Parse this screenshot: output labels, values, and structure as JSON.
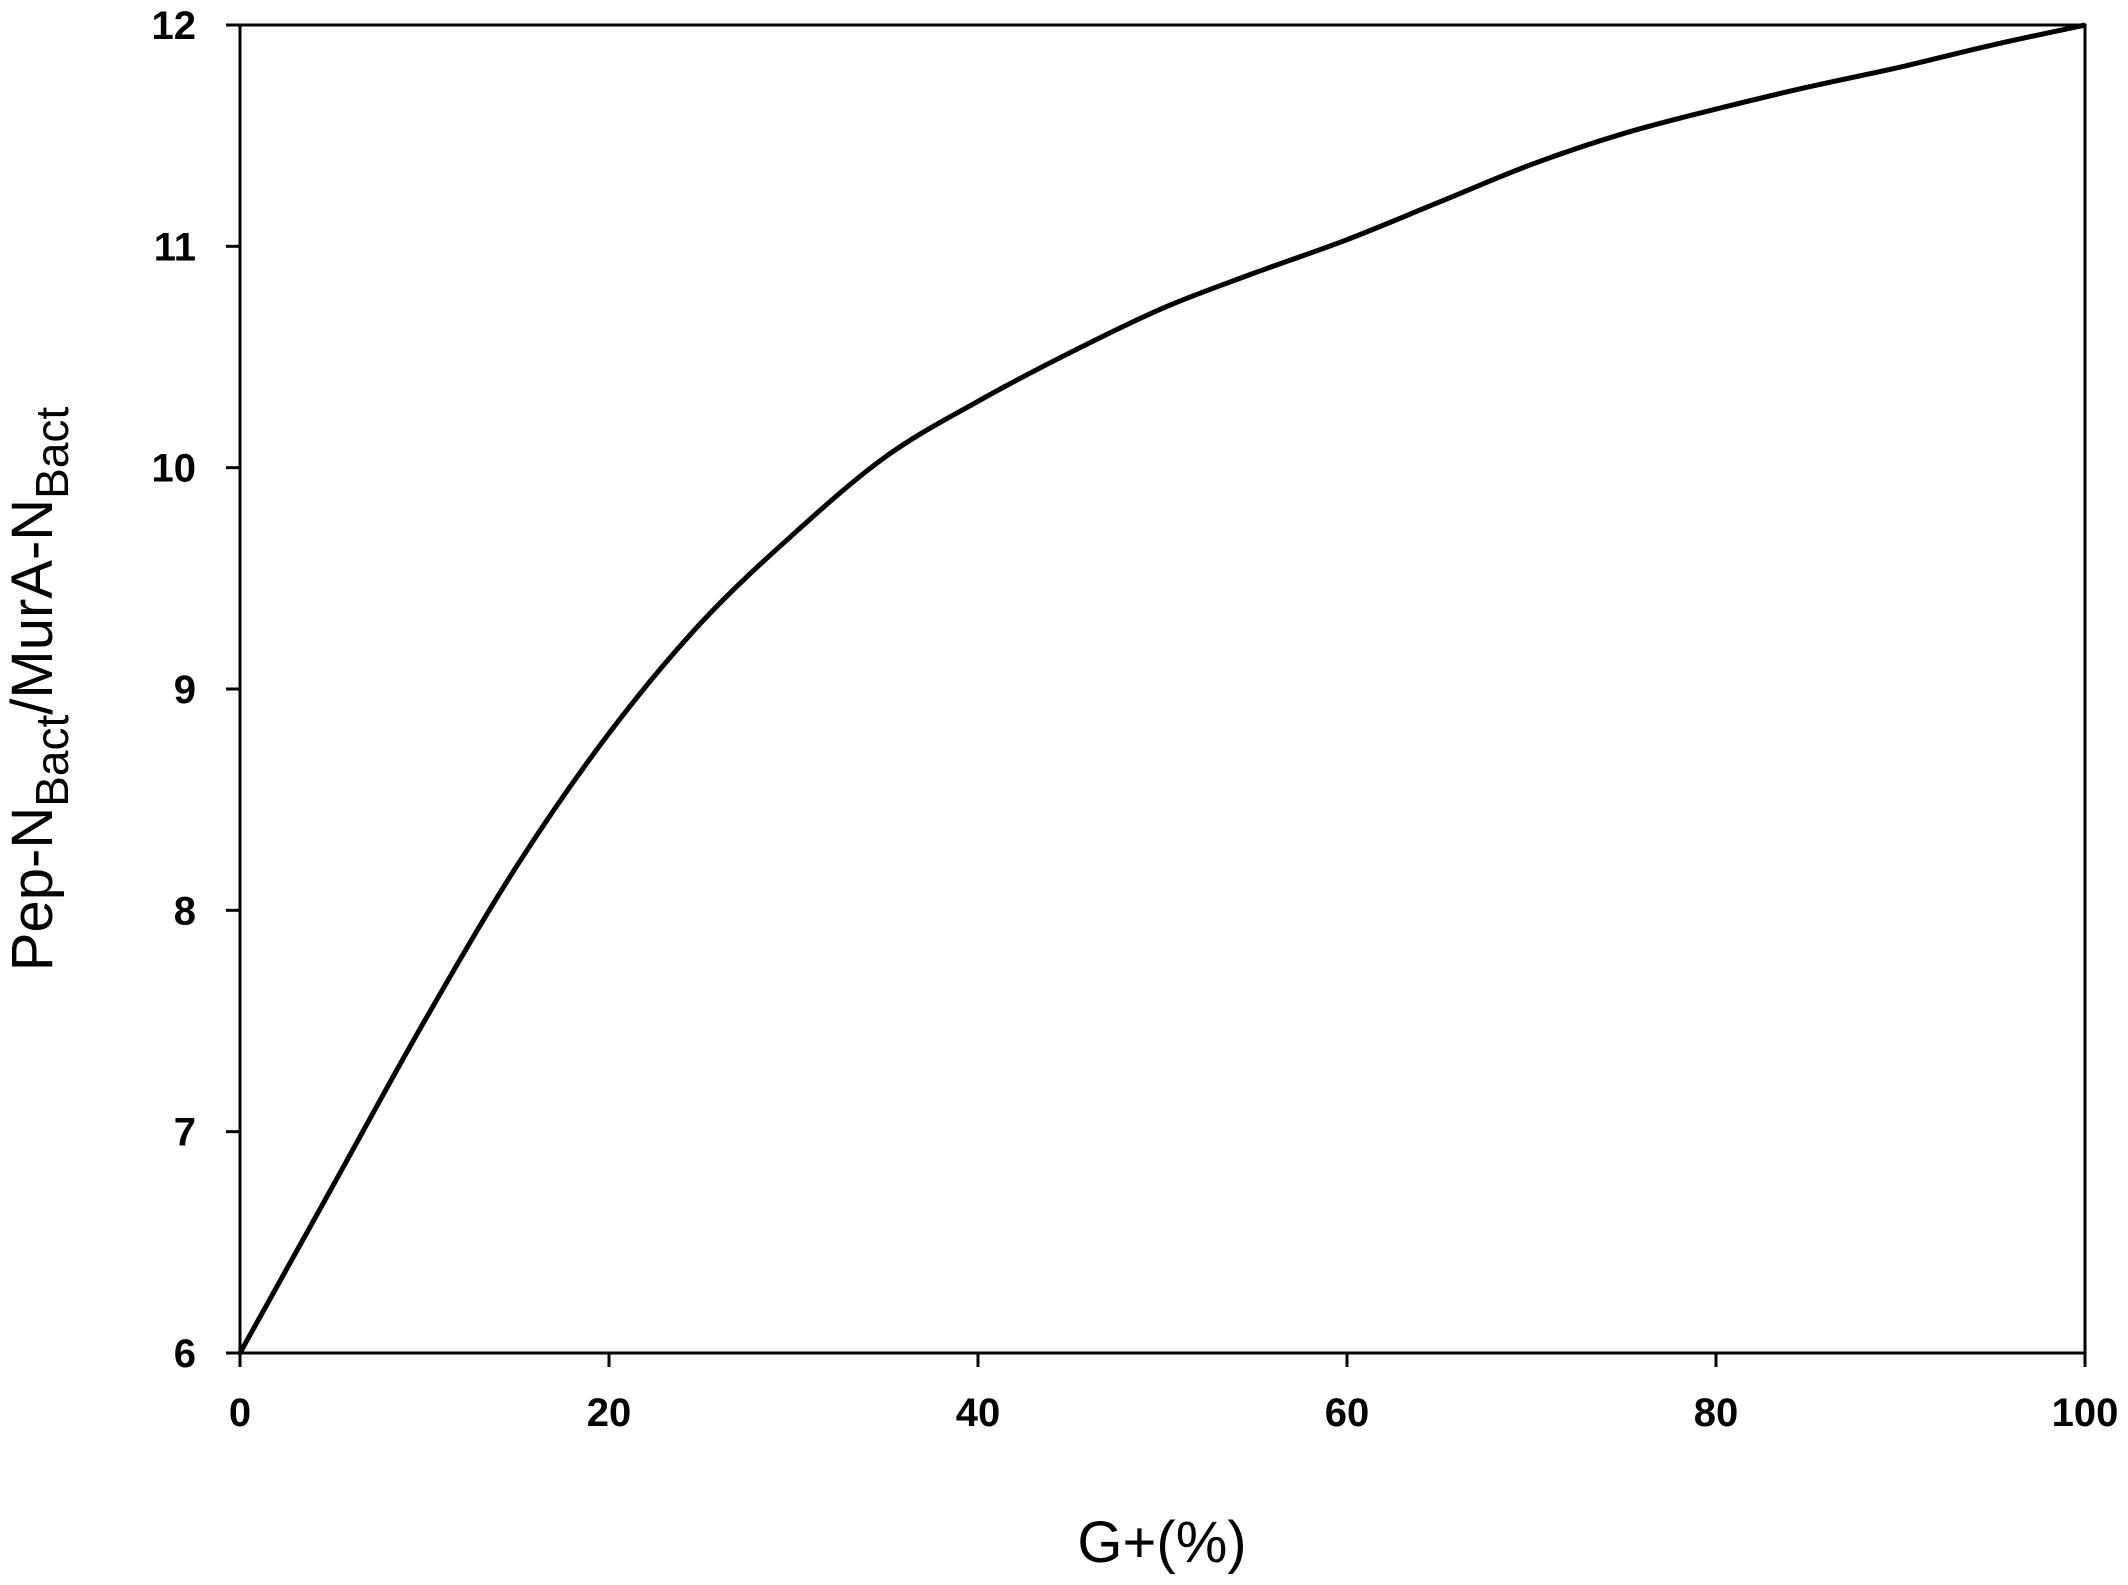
{
  "chart_data": {
    "type": "line",
    "title": "",
    "xlabel": "G+(%)",
    "ylabel": {
      "parts": [
        "Pep-N",
        "Bact",
        "/MurA-N",
        "Bact"
      ]
    },
    "xlim": [
      0,
      100
    ],
    "ylim": [
      6,
      12
    ],
    "xticks": [
      "0",
      "20",
      "40",
      "60",
      "80",
      "100"
    ],
    "yticks": [
      "6",
      "7",
      "8",
      "9",
      "10",
      "11",
      "12"
    ],
    "grid": false,
    "legend": "none",
    "line_color": "#000000",
    "series": [
      {
        "x": [
          0,
          5,
          10,
          15,
          20,
          25,
          30,
          35,
          40,
          45,
          50,
          55,
          60,
          65,
          70,
          75,
          80,
          85,
          90,
          95,
          100
        ],
        "y": [
          6.0,
          6.75,
          7.5,
          8.2,
          8.8,
          9.3,
          9.7,
          10.05,
          10.3,
          10.52,
          10.72,
          10.88,
          11.03,
          11.2,
          11.37,
          11.51,
          11.62,
          11.72,
          11.81,
          11.91,
          12.0
        ]
      }
    ]
  }
}
